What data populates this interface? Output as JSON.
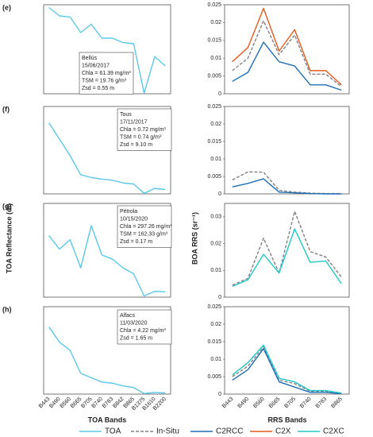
{
  "left_ylabel": "TOA Reflectance (dl)",
  "right_ylabel": "BOA RRS (sr⁻¹)",
  "left_xlabel": "TOA Bands",
  "right_xlabel": "RRS Bands",
  "chart_data": [
    {
      "type": "line",
      "label": "(e)",
      "annotation": [
        "Bellús",
        "15/06/2017",
        "Chla = 61.39 mg/m³",
        "TSM = 19.76 g/m³",
        "Zsd = 0.55 m"
      ],
      "ylim": [
        0,
        0.16
      ],
      "series": [
        {
          "name": "TOA",
          "color": "#5bc8e8",
          "values": [
            0.155,
            0.14,
            0.138,
            0.11,
            0.125,
            0.1,
            0.1,
            0.092,
            0.09,
            0.001,
            0.067,
            0.05
          ]
        }
      ]
    },
    {
      "type": "line",
      "ylim": [
        0,
        0.025
      ],
      "yticks": [
        0,
        0.005,
        0.01,
        0.015,
        0.02,
        0.025
      ],
      "series": [
        {
          "name": "In-Situ",
          "color": "#808080",
          "dash": true,
          "values": [
            0.0065,
            0.01,
            0.0205,
            0.011,
            0.0165,
            0.0055,
            0.0055,
            0.002
          ]
        },
        {
          "name": "C2RCC",
          "color": "#1f6fb5",
          "values": [
            0.0035,
            0.006,
            0.0145,
            0.009,
            0.0078,
            0.0025,
            0.0025,
            0.001
          ]
        },
        {
          "name": "C2X",
          "color": "#e35a1a",
          "values": [
            0.009,
            0.013,
            0.024,
            0.012,
            0.018,
            0.0065,
            0.0065,
            0.0025
          ]
        }
      ]
    },
    {
      "type": "line",
      "label": "(f)",
      "annotation": [
        "Tous",
        "17/11/2017",
        "Chla = 0.72 mg/m³",
        "TSM = 0.74 g/m³",
        "Zsd = 9.10 m"
      ],
      "ylim": [
        0,
        0.16
      ],
      "series": [
        {
          "name": "TOA",
          "color": "#5bc8e8",
          "values": [
            0.13,
            0.1,
            0.07,
            0.035,
            0.03,
            0.027,
            0.025,
            0.02,
            0.018,
            0.001,
            0.01,
            0.008
          ]
        }
      ]
    },
    {
      "type": "line",
      "ylim": [
        0,
        0.025
      ],
      "yticks": [
        0,
        0.005,
        0.01,
        0.015,
        0.02,
        0.025
      ],
      "series": [
        {
          "name": "In-Situ",
          "color": "#808080",
          "dash": true,
          "values": [
            0.004,
            0.0063,
            0.0062,
            0.001,
            0.0005,
            0.0002,
            0.0001,
            0.0001
          ]
        },
        {
          "name": "C2RCC",
          "color": "#1f6fb5",
          "values": [
            0.002,
            0.003,
            0.0043,
            0.0005,
            0.0003,
            0.0001,
            0,
            0
          ]
        }
      ]
    },
    {
      "type": "line",
      "label": "(g)",
      "annotation": [
        "Pétrola",
        "10/15/2020",
        "Chla = 297.26 mg/m³",
        "TSM = 162.33 g/m³",
        "Zsd = 0.17 m"
      ],
      "ylim": [
        0,
        0.16
      ],
      "series": [
        {
          "name": "TOA",
          "color": "#5bc8e8",
          "values": [
            0.105,
            0.082,
            0.098,
            0.05,
            0.122,
            0.072,
            0.065,
            0.05,
            0.04,
            0.002,
            0.01,
            0.009
          ]
        }
      ]
    },
    {
      "type": "line",
      "ylim": [
        0,
        0.035
      ],
      "yticks": [
        0,
        0.01,
        0.02,
        0.03
      ],
      "series": [
        {
          "name": "In-Situ",
          "color": "#808080",
          "dash": true,
          "values": [
            0.0045,
            0.007,
            0.022,
            0.009,
            0.032,
            0.017,
            0.015,
            0.0075
          ]
        },
        {
          "name": "C2XC",
          "color": "#1fc8c8",
          "values": [
            0.004,
            0.0065,
            0.016,
            0.009,
            0.0255,
            0.013,
            0.0135,
            0.005
          ]
        }
      ]
    },
    {
      "type": "line",
      "label": "(h)",
      "annotation": [
        "Alfacs",
        "11/03/2020",
        "Chla = 4.22 mg/m³",
        "Zsd = 1.65 m"
      ],
      "ylim": [
        0,
        0.16
      ],
      "categories": [
        "B443",
        "B490",
        "B560",
        "B665",
        "B705",
        "B740",
        "B783",
        "B842",
        "B865",
        "B1375",
        "B1610",
        "B2200"
      ],
      "series": [
        {
          "name": "TOA",
          "color": "#5bc8e8",
          "values": [
            0.123,
            0.095,
            0.08,
            0.038,
            0.03,
            0.022,
            0.02,
            0.015,
            0.012,
            0.001,
            0.003,
            0.002
          ]
        }
      ]
    },
    {
      "type": "line",
      "ylim": [
        0,
        0.025
      ],
      "yticks": [
        0,
        0.005,
        0.01,
        0.015,
        0.02,
        0.025
      ],
      "categories": [
        "B443",
        "B490",
        "B560",
        "B665",
        "B705",
        "B740",
        "B783",
        "B865"
      ],
      "series": [
        {
          "name": "In-Situ",
          "color": "#808080",
          "dash": true,
          "values": [
            0.005,
            0.008,
            0.0135,
            0.004,
            0.003,
            0.0008,
            0.0008,
            0.0002
          ]
        },
        {
          "name": "C2RCC",
          "color": "#1f6fb5",
          "values": [
            0.004,
            0.007,
            0.013,
            0.0035,
            0.002,
            0.0005,
            0.0005,
            0.0001
          ]
        },
        {
          "name": "C2XC",
          "color": "#1fc8c8",
          "values": [
            0.0055,
            0.009,
            0.014,
            0.0045,
            0.0035,
            0.001,
            0.001,
            0.0003
          ]
        }
      ]
    }
  ]
}
